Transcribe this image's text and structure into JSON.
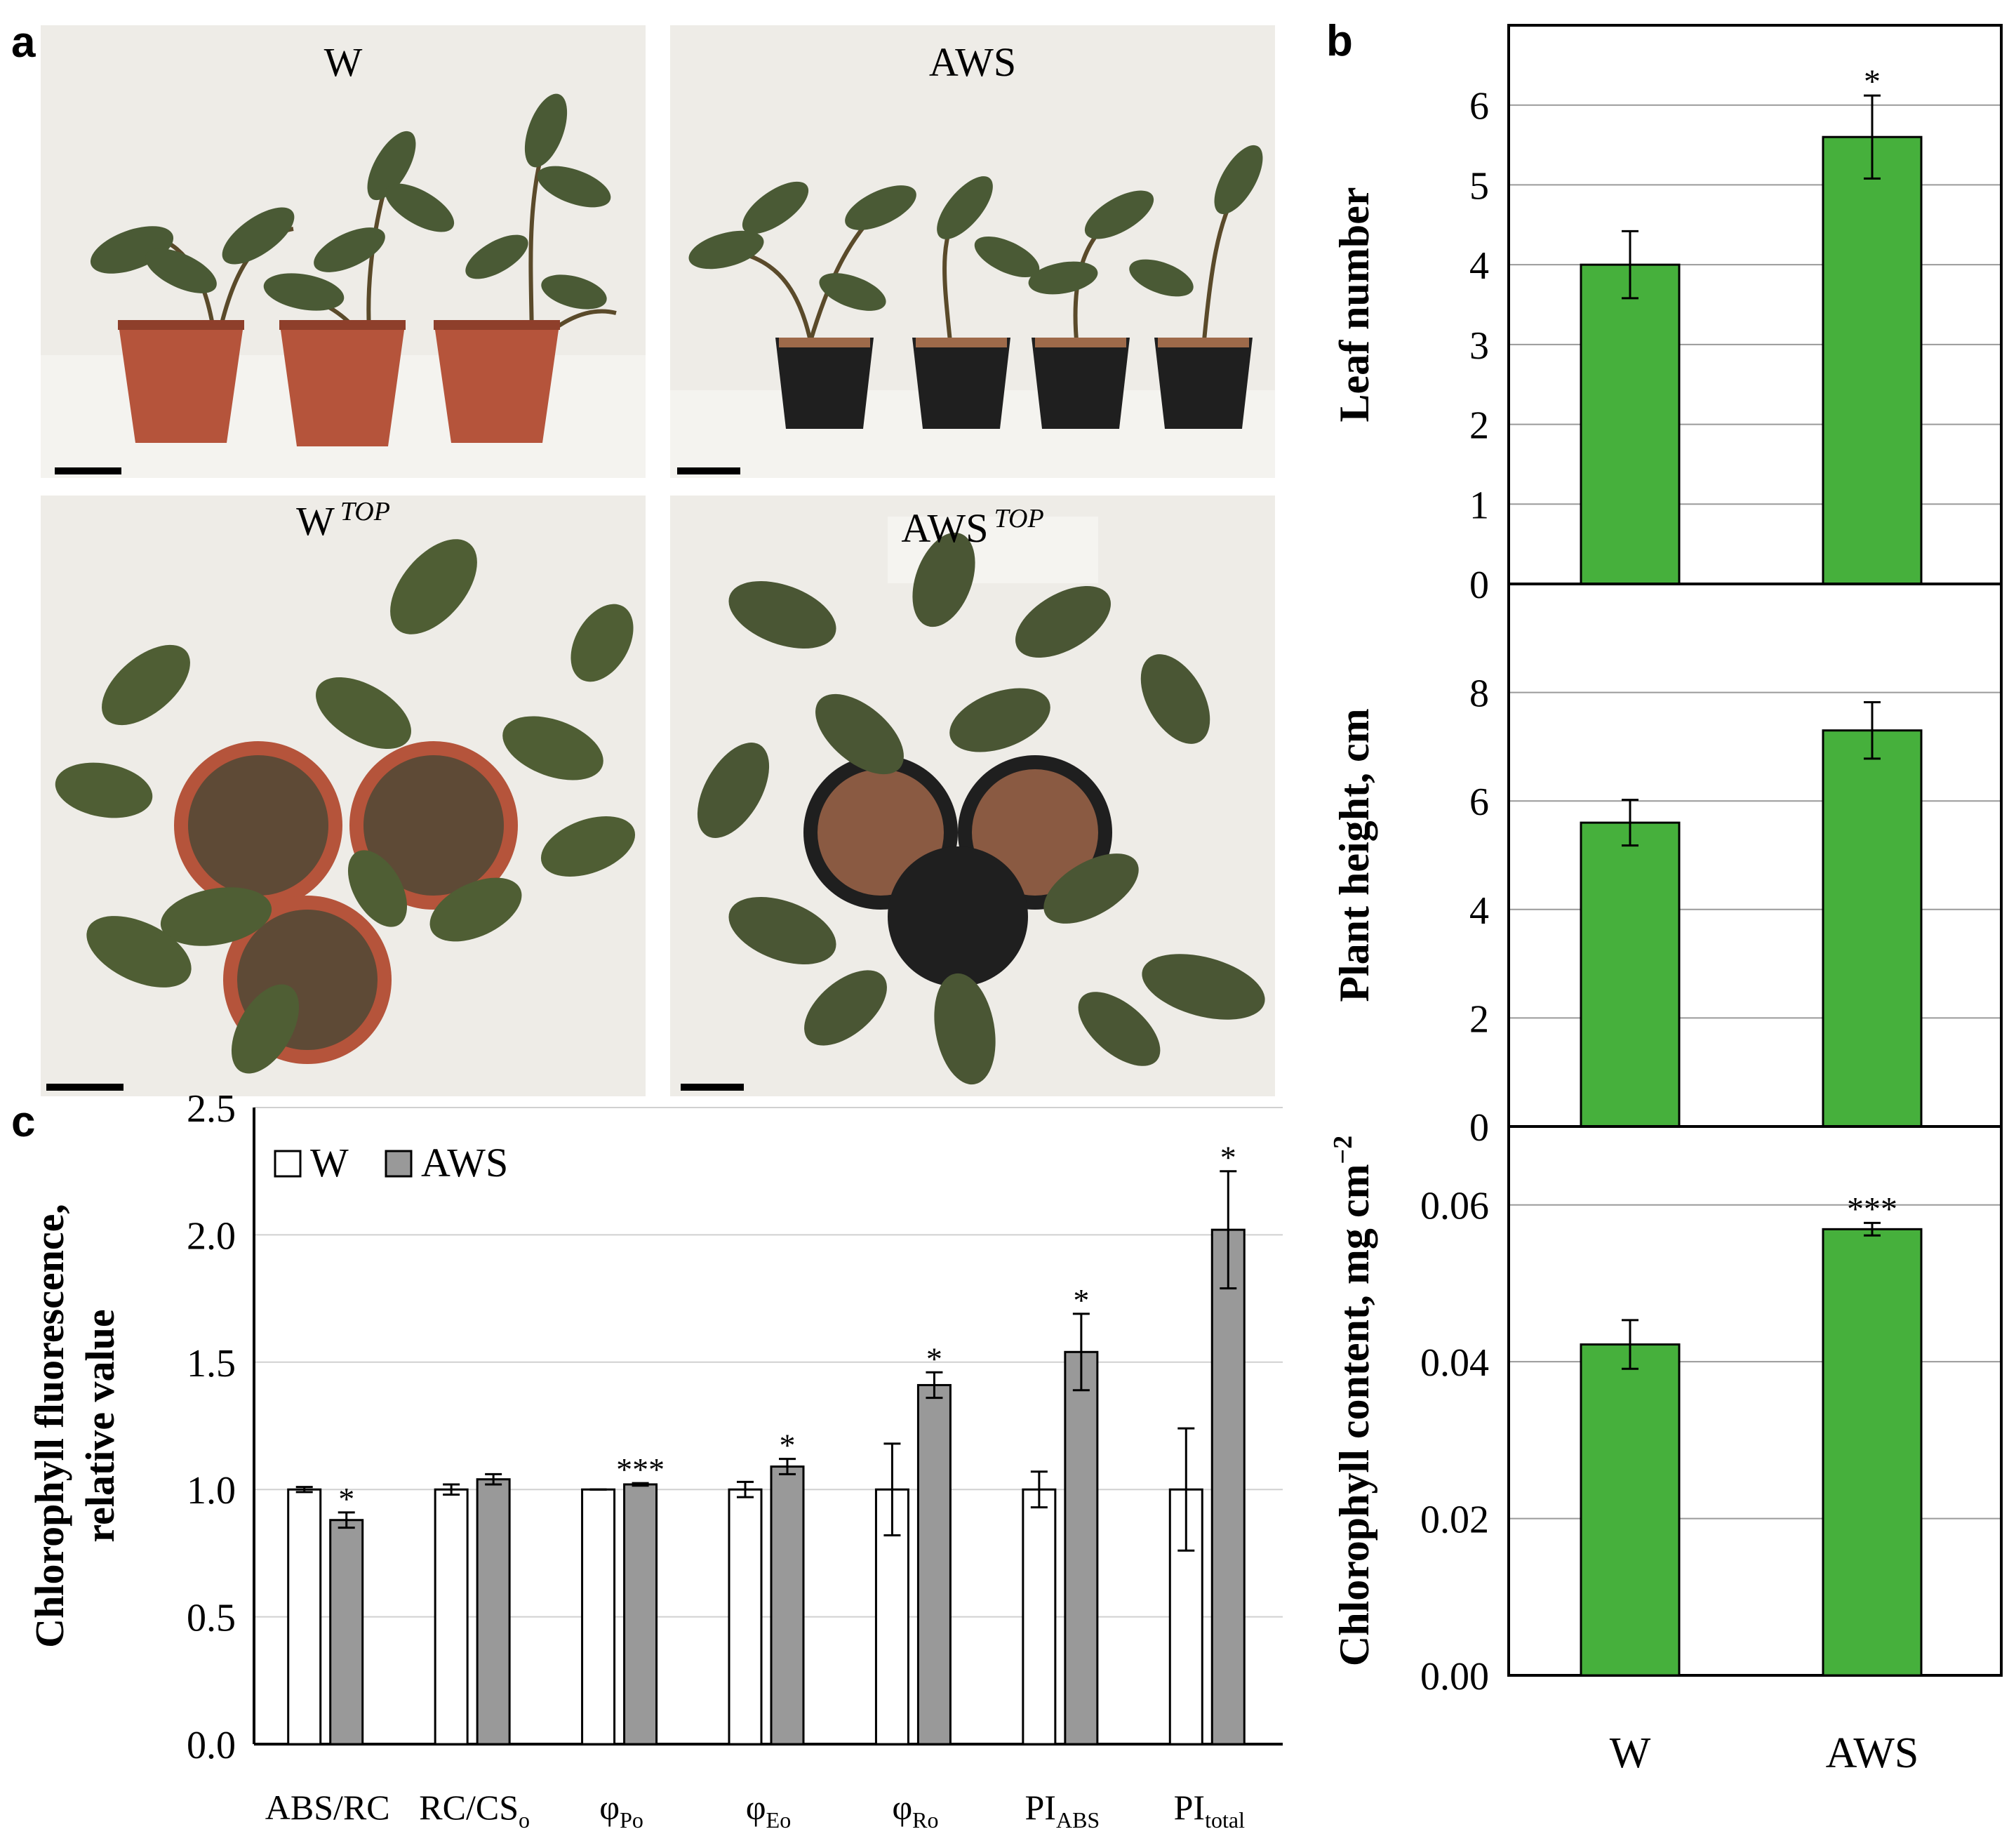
{
  "panels": {
    "a": "a",
    "b": "b",
    "c": "c"
  },
  "photos": [
    {
      "id": "w-side",
      "label": "W",
      "sup": ""
    },
    {
      "id": "aws-side",
      "label": "AWS",
      "sup": ""
    },
    {
      "id": "w-top",
      "label": "W",
      "sup": "TOP"
    },
    {
      "id": "aws-top",
      "label": "AWS",
      "sup": "TOP"
    }
  ],
  "colors": {
    "green_bar": "#46b03c",
    "w_bar": "#ffffff",
    "aws_bar": "#999999",
    "pot": "#b5543b",
    "leaf": "#4a5a35",
    "photo_bg": "#eeece7"
  },
  "chart_data": [
    {
      "id": "b-leaf",
      "type": "bar",
      "ylabel": "Leaf number",
      "categories": [
        "W",
        "AWS"
      ],
      "values": [
        4.0,
        5.6
      ],
      "errors": [
        0.42,
        0.52
      ],
      "significance": [
        "",
        "*"
      ],
      "ylim": [
        0,
        7
      ],
      "yticks": [
        "0",
        "1",
        "2",
        "3",
        "4",
        "5",
        "6"
      ],
      "grid": true
    },
    {
      "id": "b-height",
      "type": "bar",
      "ylabel": "Plant height, cm",
      "categories": [
        "W",
        "AWS"
      ],
      "values": [
        5.6,
        7.3
      ],
      "errors": [
        0.42,
        0.52
      ],
      "significance": [
        "",
        ""
      ],
      "ylim": [
        0,
        10
      ],
      "yticks": [
        "0",
        "2",
        "4",
        "6",
        "8"
      ],
      "grid": true
    },
    {
      "id": "b-chl",
      "type": "bar",
      "ylabel": "Chlorophyll content, mg cm",
      "ylabel_sup": "−2",
      "categories": [
        "W",
        "AWS"
      ],
      "values": [
        0.0422,
        0.0569
      ],
      "errors": [
        0.0031,
        0.0008
      ],
      "significance": [
        "",
        "***"
      ],
      "ylim": [
        0,
        0.07
      ],
      "yticks": [
        "0.00",
        "0.02",
        "0.04",
        "0.06"
      ],
      "xtick_labels": [
        "W",
        "AWS"
      ],
      "grid": true
    },
    {
      "id": "c-fluorescence",
      "type": "bar",
      "ylabel_lines": [
        "Chlorophyll fluorescence,",
        "relative value"
      ],
      "legend": {
        "placement": "top-left",
        "entries": [
          "W",
          "AWS"
        ]
      },
      "categories": [
        {
          "main": "ABS/RC",
          "sub": ""
        },
        {
          "main": "RC/CS",
          "sub": "o"
        },
        {
          "main": "φ",
          "sub": "Po"
        },
        {
          "main": "φ",
          "sub": "Eo"
        },
        {
          "main": "φ",
          "sub": "Ro"
        },
        {
          "main": "PI",
          "sub": "ABS"
        },
        {
          "main": "PI",
          "sub": "total"
        }
      ],
      "series": [
        {
          "name": "W",
          "values": [
            1.0,
            1.0,
            1.0,
            1.0,
            1.0,
            1.0,
            1.0
          ],
          "errors": [
            0.01,
            0.02,
            0.0,
            0.03,
            0.18,
            0.07,
            0.24
          ]
        },
        {
          "name": "AWS",
          "values": [
            0.88,
            1.04,
            1.02,
            1.09,
            1.41,
            1.54,
            2.02
          ],
          "errors": [
            0.03,
            0.02,
            0.005,
            0.03,
            0.05,
            0.15,
            0.23
          ]
        }
      ],
      "significance": [
        "*",
        "",
        "***",
        "*",
        "*",
        "*",
        "*"
      ],
      "ylim": [
        0,
        2.5
      ],
      "yticks": [
        "0.0",
        "0.5",
        "1.0",
        "1.5",
        "2.0",
        "2.5"
      ],
      "grid": true
    }
  ]
}
